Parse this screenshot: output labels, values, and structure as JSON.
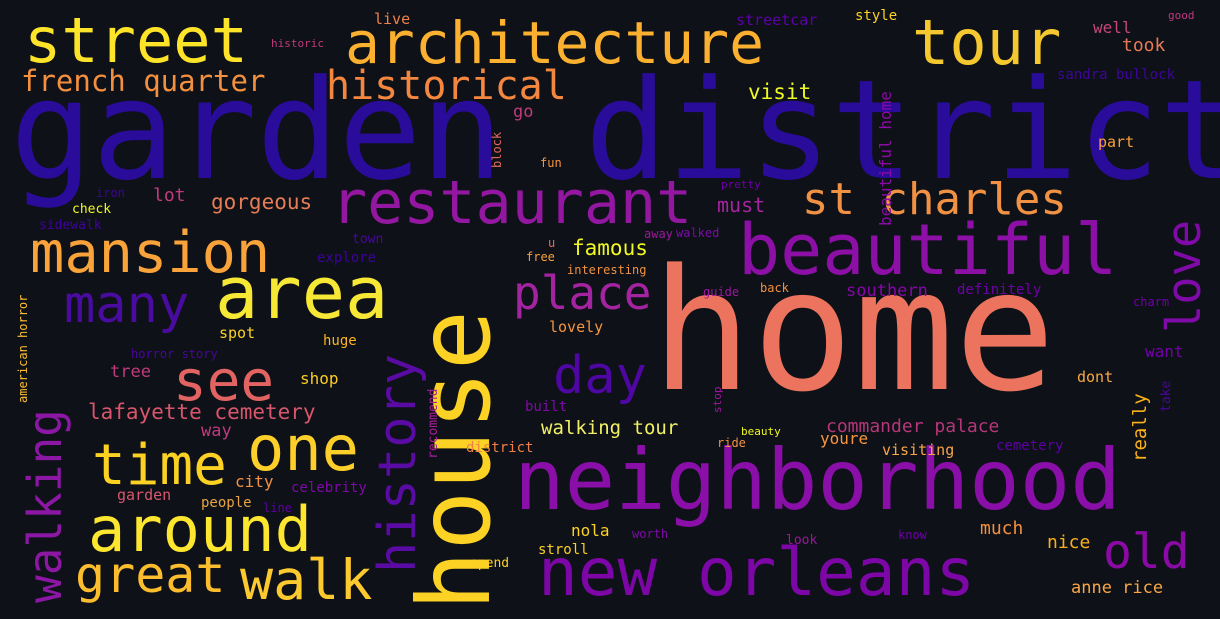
{
  "words": [
    {
      "text": "garden district",
      "color": "#2a0c9b"
    },
    {
      "text": "home",
      "color": "#ec735d"
    },
    {
      "text": "house",
      "color": "#fcd225"
    },
    {
      "text": "neighborhood",
      "color": "#8a0fa8"
    },
    {
      "text": "street",
      "color": "#fde429"
    },
    {
      "text": "architecture",
      "color": "#fbb030"
    },
    {
      "text": "tour",
      "color": "#f6c82f"
    },
    {
      "text": "new orleans",
      "color": "#7c06a6"
    },
    {
      "text": "beautiful",
      "color": "#8c0fa6"
    },
    {
      "text": "restaurant",
      "color": "#9317a1"
    },
    {
      "text": "area",
      "color": "#f7e836"
    },
    {
      "text": "mansion",
      "color": "#f9a33a"
    },
    {
      "text": "historical",
      "color": "#f4873f"
    },
    {
      "text": "french quarter",
      "color": "#f3903f"
    },
    {
      "text": "st charles",
      "color": "#f19143"
    },
    {
      "text": "many",
      "color": "#4a0ca0"
    },
    {
      "text": "see",
      "color": "#e16462"
    },
    {
      "text": "one",
      "color": "#fdcf2a"
    },
    {
      "text": "time",
      "color": "#fbd124"
    },
    {
      "text": "around",
      "color": "#fde62f"
    },
    {
      "text": "great",
      "color": "#fbbd2d"
    },
    {
      "text": "walk",
      "color": "#fcca2e"
    },
    {
      "text": "walking",
      "color": "#8c17a4"
    },
    {
      "text": "history",
      "color": "#5a0ba4"
    },
    {
      "text": "place",
      "color": "#a323a0"
    },
    {
      "text": "day",
      "color": "#4e07a2"
    },
    {
      "text": "love",
      "color": "#7e0aa7"
    },
    {
      "text": "old",
      "color": "#8b0aa5"
    },
    {
      "text": "lafayette cemetery",
      "color": "#d7566c"
    },
    {
      "text": "walking tour",
      "color": "#f1f066"
    },
    {
      "text": "commander palace",
      "color": "#b5367a"
    },
    {
      "text": "gorgeous",
      "color": "#e57d56"
    },
    {
      "text": "famous",
      "color": "#f0f921"
    },
    {
      "text": "must",
      "color": "#a5249f"
    },
    {
      "text": "visit",
      "color": "#f0f921"
    },
    {
      "text": "southern",
      "color": "#8607a6"
    },
    {
      "text": "definitely",
      "color": "#6e00a8"
    },
    {
      "text": "beautiful home",
      "color": "#8b0aa5"
    },
    {
      "text": "really",
      "color": "#f9b11b"
    },
    {
      "text": "took",
      "color": "#e57a57"
    },
    {
      "text": "well",
      "color": "#c4467b"
    },
    {
      "text": "sandra bullock",
      "color": "#3e049c"
    },
    {
      "text": "streetcar",
      "color": "#5d01a6"
    },
    {
      "text": "style",
      "color": "#fcd225"
    },
    {
      "text": "good",
      "color": "#c03a83"
    },
    {
      "text": "live",
      "color": "#f0804a"
    },
    {
      "text": "historic",
      "color": "#c13a7c"
    },
    {
      "text": "go",
      "color": "#c13a7c"
    },
    {
      "text": "block",
      "color": "#e36a5f"
    },
    {
      "text": "fun",
      "color": "#f89540"
    },
    {
      "text": "part",
      "color": "#f7a13c"
    },
    {
      "text": "pretty",
      "color": "#6e00a8"
    },
    {
      "text": "away",
      "color": "#9c179e"
    },
    {
      "text": "walked",
      "color": "#7a0ca9"
    },
    {
      "text": "iron",
      "color": "#3d049b"
    },
    {
      "text": "check",
      "color": "#f0f921"
    },
    {
      "text": "sidewalk",
      "color": "#3e049c"
    },
    {
      "text": "lot",
      "color": "#c13a7c"
    },
    {
      "text": "town",
      "color": "#4b04a0"
    },
    {
      "text": "explore",
      "color": "#3c0399"
    },
    {
      "text": "u",
      "color": "#e9695f"
    },
    {
      "text": "free",
      "color": "#f7a13c"
    },
    {
      "text": "interesting",
      "color": "#f19143"
    },
    {
      "text": "guide",
      "color": "#9c179e"
    },
    {
      "text": "back",
      "color": "#f3903f"
    },
    {
      "text": "charm",
      "color": "#6e00a8"
    },
    {
      "text": "american horror",
      "color": "#fbbf2f"
    },
    {
      "text": "spot",
      "color": "#fcd225"
    },
    {
      "text": "huge",
      "color": "#fcb523"
    },
    {
      "text": "horror story",
      "color": "#4c04a0"
    },
    {
      "text": "lovely",
      "color": "#f89540"
    },
    {
      "text": "tree",
      "color": "#c13a7c"
    },
    {
      "text": "shop",
      "color": "#fdca26"
    },
    {
      "text": "want",
      "color": "#7201a8"
    },
    {
      "text": "dont",
      "color": "#f9a746"
    },
    {
      "text": "take",
      "color": "#4c04a0"
    },
    {
      "text": "recommend",
      "color": "#a81d9c"
    },
    {
      "text": "built",
      "color": "#7e0aa7"
    },
    {
      "text": "stop",
      "color": "#9c179e"
    },
    {
      "text": "beauty",
      "color": "#f0f921"
    },
    {
      "text": "way",
      "color": "#c13a7c"
    },
    {
      "text": "district",
      "color": "#f0804a"
    },
    {
      "text": "ride",
      "color": "#f19143"
    },
    {
      "text": "youre",
      "color": "#f89540"
    },
    {
      "text": "visiting",
      "color": "#f9a545"
    },
    {
      "text": "cemetery",
      "color": "#5d01a6"
    },
    {
      "text": "city",
      "color": "#f19143"
    },
    {
      "text": "celebrity",
      "color": "#7e0aa7"
    },
    {
      "text": "garden",
      "color": "#d8576b"
    },
    {
      "text": "people",
      "color": "#e8a442"
    },
    {
      "text": "line",
      "color": "#5d01a6"
    },
    {
      "text": "nola",
      "color": "#fcd225"
    },
    {
      "text": "worth",
      "color": "#7e0aa7"
    },
    {
      "text": "look",
      "color": "#9c179e"
    },
    {
      "text": "know",
      "color": "#6e00a8"
    },
    {
      "text": "much",
      "color": "#f3903f"
    },
    {
      "text": "nice",
      "color": "#f9b11b"
    },
    {
      "text": "stroll",
      "color": "#fbd124"
    },
    {
      "text": "spend",
      "color": "#fbd124"
    },
    {
      "text": "anne rice",
      "color": "#f9a746"
    }
  ]
}
